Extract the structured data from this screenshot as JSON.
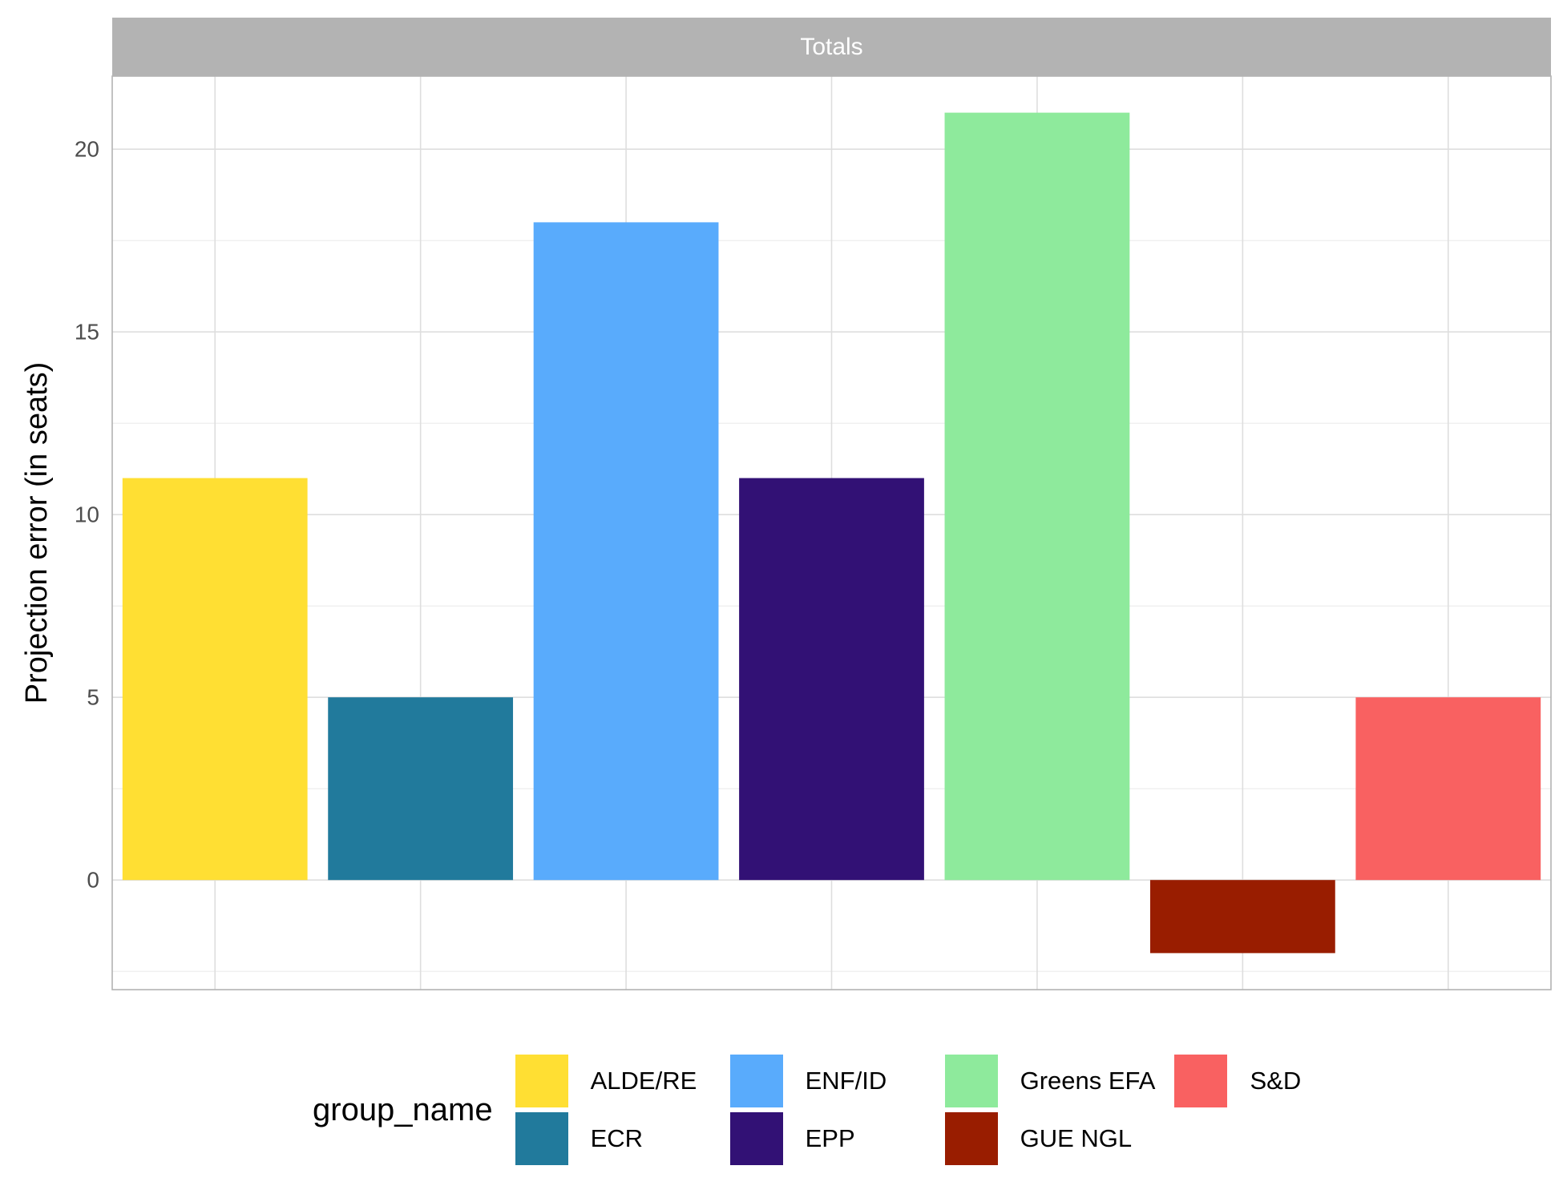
{
  "chart_data": {
    "type": "bar",
    "facet_title": "Totals",
    "ylabel": "Projection error (in seats)",
    "xlabel": "",
    "categories": [
      "ALDE/RE",
      "ECR",
      "ENF/ID",
      "EPP",
      "Greens EFA",
      "GUE NGL",
      "S&D"
    ],
    "values": [
      11,
      5,
      18,
      11,
      21,
      -2,
      5
    ],
    "colors": [
      "#FFDF33",
      "#217A9C",
      "#59ABFC",
      "#321175",
      "#8EEA9C",
      "#991D00",
      "#F96161"
    ],
    "ylim": [
      -3,
      22
    ],
    "yticks": [
      0,
      5,
      10,
      15,
      20
    ],
    "grid": true,
    "legend": {
      "title": "group_name",
      "placement": "bottom",
      "entries": [
        "ALDE/RE",
        "ECR",
        "ENF/ID",
        "EPP",
        "Greens EFA",
        "GUE NGL",
        "S&D"
      ]
    }
  }
}
